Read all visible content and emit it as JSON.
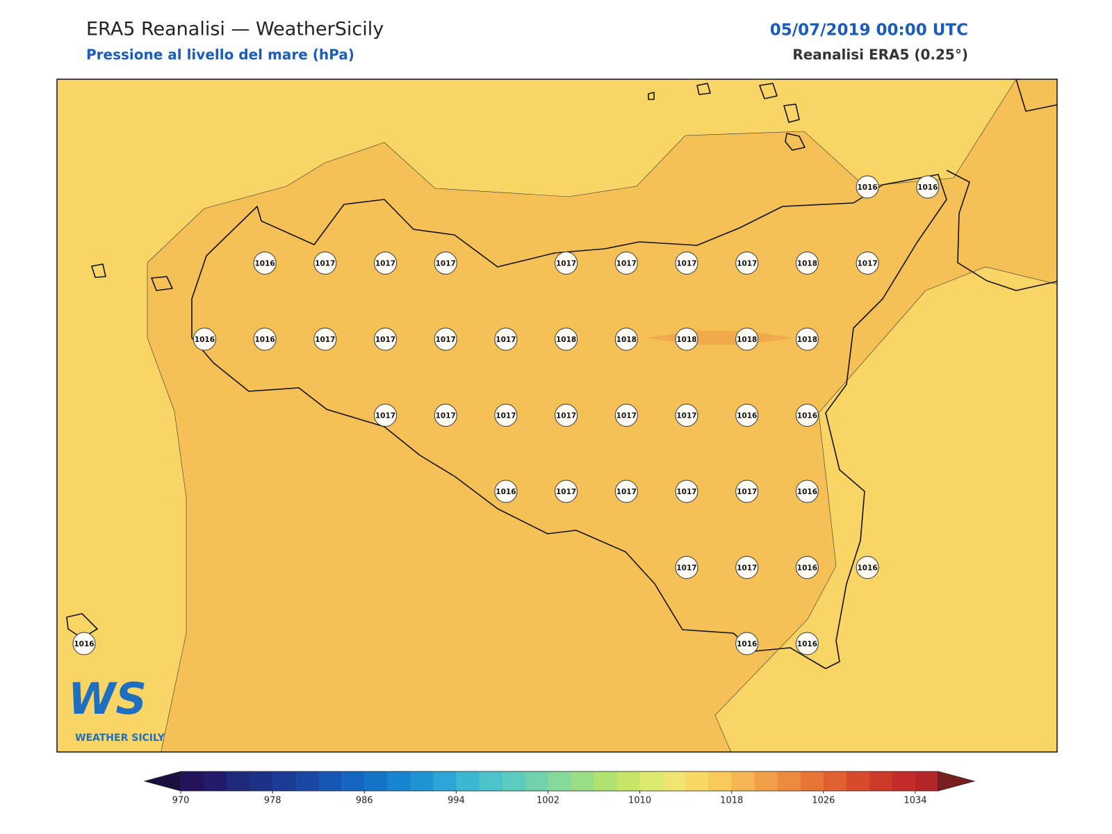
{
  "header": {
    "title": "ERA5 Reanalisi — WeatherSicily",
    "subtitle": "Pressione al livello del mare (hPa)",
    "datetime": "05/07/2019 00:00 UTC",
    "source": "Reanalisi ERA5 (0.25°)"
  },
  "stations": [
    1016,
    1016,
    1016,
    1017,
    1017,
    1017,
    1017,
    1017,
    1017,
    1017,
    1018,
    1017,
    1016,
    1016,
    1017,
    1017,
    1017,
    1017,
    1018,
    1018,
    1018,
    1018,
    1018,
    1017,
    1017,
    1017,
    1017,
    1017,
    1017,
    1016,
    1016,
    1016,
    1017,
    1017,
    1017,
    1017,
    1016,
    1017,
    1017,
    1016,
    1016,
    1016,
    1016,
    1016
  ],
  "colorbar": {
    "range": [
      970,
      1036
    ],
    "ticks": [
      970,
      978,
      986,
      994,
      1002,
      1010,
      1018,
      1026,
      1034
    ],
    "colors": [
      "#24135a",
      "#231a6b",
      "#1f2a7c",
      "#1d3388",
      "#1b3b94",
      "#1a47a4",
      "#1656b3",
      "#1466c0",
      "#1474c8",
      "#1784cf",
      "#2094d3",
      "#2ea5d6",
      "#3cb7d2",
      "#4cc3cb",
      "#5ccbbf",
      "#6fd1ad",
      "#84d99b",
      "#99de85",
      "#b0e272",
      "#c6e66a",
      "#dbe96e",
      "#f0e570",
      "#f9d865",
      "#f7c85a",
      "#f4b552",
      "#f1a049",
      "#ec8a3f",
      "#e77537",
      "#e0602f",
      "#d84c2b",
      "#ce3a29",
      "#c32c2a",
      "#b5262a"
    ],
    "under": "#1a1040",
    "over": "#7a1f1f"
  },
  "logo": {
    "text": "WS",
    "caption": "WEATHER SICILY"
  }
}
